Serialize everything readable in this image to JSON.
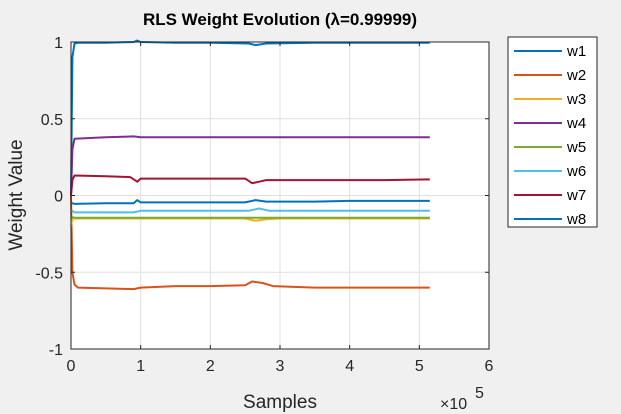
{
  "chart_data": {
    "type": "line",
    "title": "RLS Weight Evolution (λ=0.99999)",
    "xlabel": "Samples",
    "ylabel": "Weight Value",
    "x_exponent_base": "×10",
    "x_exponent_power": "5",
    "xlim": [
      0,
      6
    ],
    "ylim": [
      -1,
      1
    ],
    "xticks": [
      0,
      1,
      2,
      3,
      4,
      5,
      6
    ],
    "xtick_labels": [
      "0",
      "1",
      "2",
      "3",
      "4",
      "5",
      "6"
    ],
    "yticks": [
      -1,
      -0.5,
      0,
      0.5,
      1
    ],
    "ytick_labels": [
      "-1",
      "-0.5",
      "0",
      "0.5",
      "1"
    ],
    "grid": true,
    "legend_position": "outside-right",
    "series": [
      {
        "name": "w1",
        "color": "#0072BD",
        "x": [
          0,
          0.02,
          0.05,
          0.1,
          0.5,
          0.9,
          0.95,
          1.0,
          1.5,
          2.0,
          2.55,
          2.65,
          2.8,
          3.5,
          4.0,
          4.5,
          5.15
        ],
        "y": [
          0,
          0.9,
          0.99,
          0.995,
          0.995,
          1.0,
          1.01,
          1.0,
          0.995,
          0.995,
          0.99,
          0.98,
          0.99,
          0.995,
          0.995,
          0.995,
          0.995
        ]
      },
      {
        "name": "w2",
        "color": "#D95319",
        "x": [
          0,
          0.02,
          0.05,
          0.1,
          0.5,
          0.9,
          1.0,
          1.5,
          2.0,
          2.5,
          2.6,
          2.75,
          2.9,
          3.5,
          4.0,
          4.5,
          5.15
        ],
        "y": [
          0,
          -0.5,
          -0.58,
          -0.6,
          -0.605,
          -0.61,
          -0.6,
          -0.59,
          -0.59,
          -0.585,
          -0.56,
          -0.57,
          -0.59,
          -0.6,
          -0.6,
          -0.6,
          -0.6
        ]
      },
      {
        "name": "w3",
        "color": "#EDB120",
        "x": [
          0,
          0.02,
          0.05,
          0.5,
          1.0,
          1.5,
          2.0,
          2.5,
          2.65,
          2.8,
          3.0,
          3.5,
          4.0,
          4.5,
          5.15
        ],
        "y": [
          -0.2,
          -0.15,
          -0.15,
          -0.15,
          -0.15,
          -0.15,
          -0.15,
          -0.15,
          -0.165,
          -0.155,
          -0.15,
          -0.15,
          -0.15,
          -0.15,
          -0.15
        ]
      },
      {
        "name": "w4",
        "color": "#7E2F8E",
        "x": [
          0,
          0.02,
          0.05,
          0.5,
          0.9,
          1.0,
          1.5,
          2.0,
          2.5,
          3.0,
          3.5,
          4.0,
          4.5,
          5.15
        ],
        "y": [
          0,
          0.3,
          0.37,
          0.38,
          0.385,
          0.38,
          0.38,
          0.38,
          0.38,
          0.38,
          0.38,
          0.38,
          0.38,
          0.38
        ]
      },
      {
        "name": "w5",
        "color": "#77AC30",
        "x": [
          0,
          0.02,
          0.05,
          0.5,
          1.0,
          1.5,
          2.0,
          2.5,
          3.0,
          3.5,
          4.0,
          4.5,
          5.15
        ],
        "y": [
          -0.15,
          -0.14,
          -0.145,
          -0.145,
          -0.145,
          -0.145,
          -0.145,
          -0.145,
          -0.145,
          -0.145,
          -0.145,
          -0.145,
          -0.145
        ]
      },
      {
        "name": "w6",
        "color": "#4DBEEE",
        "x": [
          0,
          0.02,
          0.05,
          0.5,
          0.9,
          1.0,
          1.5,
          2.0,
          2.55,
          2.7,
          2.85,
          3.5,
          4.0,
          4.5,
          5.15
        ],
        "y": [
          -0.1,
          -0.1,
          -0.11,
          -0.11,
          -0.11,
          -0.1,
          -0.1,
          -0.1,
          -0.1,
          -0.085,
          -0.1,
          -0.1,
          -0.1,
          -0.1,
          -0.1
        ]
      },
      {
        "name": "w7",
        "color": "#A2142F",
        "x": [
          0,
          0.02,
          0.05,
          0.5,
          0.85,
          0.95,
          1.0,
          1.5,
          2.0,
          2.5,
          2.6,
          2.7,
          2.8,
          3.5,
          4.0,
          4.5,
          5.15
        ],
        "y": [
          0,
          0.1,
          0.13,
          0.125,
          0.12,
          0.09,
          0.11,
          0.11,
          0.11,
          0.11,
          0.08,
          0.09,
          0.1,
          0.1,
          0.1,
          0.1,
          0.105
        ]
      },
      {
        "name": "w8",
        "color": "#0072BD",
        "x": [
          0,
          0.02,
          0.05,
          0.5,
          0.9,
          0.95,
          1.0,
          1.5,
          2.0,
          2.5,
          2.65,
          2.8,
          3.5,
          4.0,
          4.5,
          5.15
        ],
        "y": [
          -0.05,
          -0.05,
          -0.055,
          -0.05,
          -0.05,
          -0.03,
          -0.045,
          -0.045,
          -0.045,
          -0.045,
          -0.03,
          -0.04,
          -0.04,
          -0.035,
          -0.035,
          -0.035
        ]
      }
    ]
  }
}
